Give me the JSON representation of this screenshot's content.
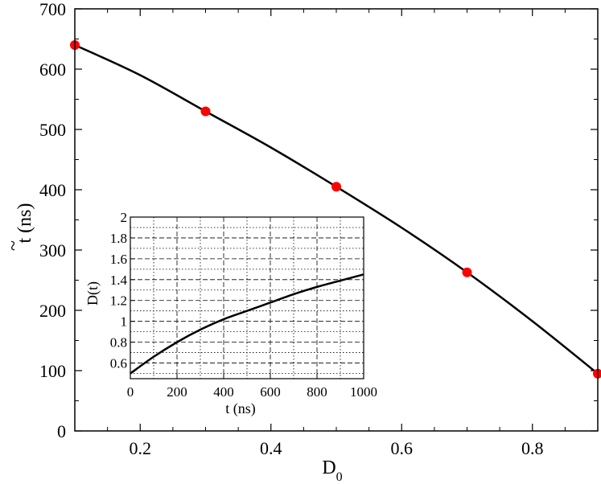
{
  "chart_data": [
    {
      "type": "scatter",
      "xlabel": "D",
      "xlabel_sub": "0",
      "ylabel": "t (ns)",
      "ylabel_accent": "~",
      "xlim": [
        0.1,
        0.9
      ],
      "ylim": [
        0,
        700
      ],
      "xticks": [
        {
          "value": 0.2,
          "label": "0.2"
        },
        {
          "value": 0.4,
          "label": "0.4"
        },
        {
          "value": 0.6,
          "label": "0.6"
        },
        {
          "value": 0.8,
          "label": "0.8"
        }
      ],
      "yticks": [
        {
          "value": 0,
          "label": "0"
        },
        {
          "value": 100,
          "label": "100"
        },
        {
          "value": 200,
          "label": "200"
        },
        {
          "value": 300,
          "label": "300"
        },
        {
          "value": 400,
          "label": "400"
        },
        {
          "value": 500,
          "label": "500"
        },
        {
          "value": 600,
          "label": "600"
        },
        {
          "value": 700,
          "label": "700"
        }
      ],
      "grid": false,
      "series": [
        {
          "kind": "markers",
          "color": "#ff0000",
          "x": [
            0.1,
            0.3,
            0.5,
            0.7,
            0.9
          ],
          "y": [
            640,
            530,
            405,
            263,
            95
          ]
        },
        {
          "kind": "line",
          "color": "#000000",
          "x": [
            0.1,
            0.2,
            0.3,
            0.4,
            0.5,
            0.6,
            0.7,
            0.8,
            0.9
          ],
          "y": [
            640,
            590,
            530,
            470,
            405,
            337,
            263,
            182,
            95
          ]
        }
      ]
    },
    {
      "type": "line",
      "inset": true,
      "xlabel": "t (ns)",
      "ylabel": "D(t)",
      "xlim": [
        0,
        1000
      ],
      "ylim": [
        0.45,
        2
      ],
      "xticks": [
        {
          "value": 0,
          "label": "0"
        },
        {
          "value": 200,
          "label": "200"
        },
        {
          "value": 400,
          "label": "400"
        },
        {
          "value": 600,
          "label": "600"
        },
        {
          "value": 800,
          "label": "800"
        },
        {
          "value": 1000,
          "label": "1000"
        }
      ],
      "yticks": [
        {
          "value": 0.6,
          "label": "0.6"
        },
        {
          "value": 0.8,
          "label": "0.8"
        },
        {
          "value": 1.0,
          "label": "1"
        },
        {
          "value": 1.2,
          "label": "1.2"
        },
        {
          "value": 1.4,
          "label": "1.4"
        },
        {
          "value": 1.6,
          "label": "1.6"
        },
        {
          "value": 1.8,
          "label": "1.8"
        },
        {
          "value": 2.0,
          "label": "2"
        }
      ],
      "grid": true,
      "series": [
        {
          "kind": "line",
          "color": "#000000",
          "x": [
            0,
            100,
            200,
            300,
            400,
            500,
            600,
            700,
            800,
            900,
            1000
          ],
          "y": [
            0.5,
            0.66,
            0.8,
            0.92,
            1.02,
            1.1,
            1.18,
            1.26,
            1.33,
            1.39,
            1.45
          ]
        }
      ]
    }
  ]
}
